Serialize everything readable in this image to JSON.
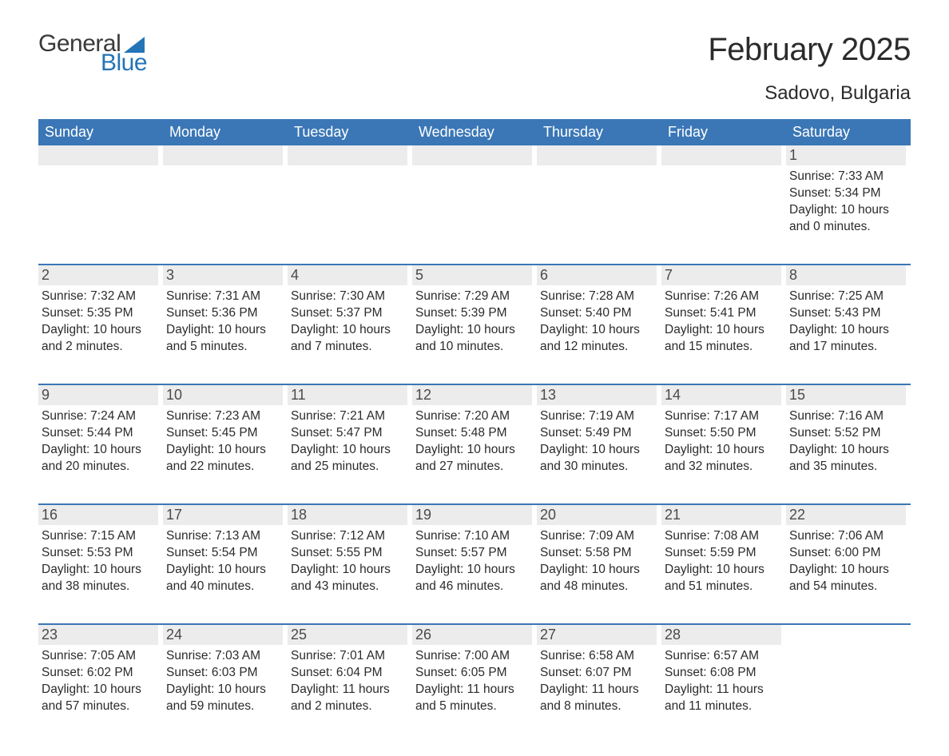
{
  "brand": {
    "word1": "General",
    "word2": "Blue",
    "text_color": "#3a3a3a",
    "accent_color": "#2474b7"
  },
  "title": "February 2025",
  "location": "Sadovo, Bulgaria",
  "colors": {
    "header_bg": "#3b77b6",
    "header_text": "#ffffff",
    "daynum_bg": "#ececec",
    "week_border": "#3b77b6",
    "body_text": "#2b2b2b",
    "page_bg": "#ffffff"
  },
  "typography": {
    "title_fontsize": 40,
    "location_fontsize": 24,
    "dow_fontsize": 18,
    "daynum_fontsize": 18,
    "body_fontsize": 15.5,
    "font_family": "Arial"
  },
  "days_of_week": [
    "Sunday",
    "Monday",
    "Tuesday",
    "Wednesday",
    "Thursday",
    "Friday",
    "Saturday"
  ],
  "layout": {
    "columns": 7,
    "rows": 5,
    "leading_blanks": 6,
    "trailing_blanks": 1
  },
  "label_prefixes": {
    "sunrise": "Sunrise: ",
    "sunset": "Sunset: ",
    "daylight": "Daylight: "
  },
  "days": [
    {
      "n": 1,
      "sunrise": "7:33 AM",
      "sunset": "5:34 PM",
      "daylight": "10 hours and 0 minutes."
    },
    {
      "n": 2,
      "sunrise": "7:32 AM",
      "sunset": "5:35 PM",
      "daylight": "10 hours and 2 minutes."
    },
    {
      "n": 3,
      "sunrise": "7:31 AM",
      "sunset": "5:36 PM",
      "daylight": "10 hours and 5 minutes."
    },
    {
      "n": 4,
      "sunrise": "7:30 AM",
      "sunset": "5:37 PM",
      "daylight": "10 hours and 7 minutes."
    },
    {
      "n": 5,
      "sunrise": "7:29 AM",
      "sunset": "5:39 PM",
      "daylight": "10 hours and 10 minutes."
    },
    {
      "n": 6,
      "sunrise": "7:28 AM",
      "sunset": "5:40 PM",
      "daylight": "10 hours and 12 minutes."
    },
    {
      "n": 7,
      "sunrise": "7:26 AM",
      "sunset": "5:41 PM",
      "daylight": "10 hours and 15 minutes."
    },
    {
      "n": 8,
      "sunrise": "7:25 AM",
      "sunset": "5:43 PM",
      "daylight": "10 hours and 17 minutes."
    },
    {
      "n": 9,
      "sunrise": "7:24 AM",
      "sunset": "5:44 PM",
      "daylight": "10 hours and 20 minutes."
    },
    {
      "n": 10,
      "sunrise": "7:23 AM",
      "sunset": "5:45 PM",
      "daylight": "10 hours and 22 minutes."
    },
    {
      "n": 11,
      "sunrise": "7:21 AM",
      "sunset": "5:47 PM",
      "daylight": "10 hours and 25 minutes."
    },
    {
      "n": 12,
      "sunrise": "7:20 AM",
      "sunset": "5:48 PM",
      "daylight": "10 hours and 27 minutes."
    },
    {
      "n": 13,
      "sunrise": "7:19 AM",
      "sunset": "5:49 PM",
      "daylight": "10 hours and 30 minutes."
    },
    {
      "n": 14,
      "sunrise": "7:17 AM",
      "sunset": "5:50 PM",
      "daylight": "10 hours and 32 minutes."
    },
    {
      "n": 15,
      "sunrise": "7:16 AM",
      "sunset": "5:52 PM",
      "daylight": "10 hours and 35 minutes."
    },
    {
      "n": 16,
      "sunrise": "7:15 AM",
      "sunset": "5:53 PM",
      "daylight": "10 hours and 38 minutes."
    },
    {
      "n": 17,
      "sunrise": "7:13 AM",
      "sunset": "5:54 PM",
      "daylight": "10 hours and 40 minutes."
    },
    {
      "n": 18,
      "sunrise": "7:12 AM",
      "sunset": "5:55 PM",
      "daylight": "10 hours and 43 minutes."
    },
    {
      "n": 19,
      "sunrise": "7:10 AM",
      "sunset": "5:57 PM",
      "daylight": "10 hours and 46 minutes."
    },
    {
      "n": 20,
      "sunrise": "7:09 AM",
      "sunset": "5:58 PM",
      "daylight": "10 hours and 48 minutes."
    },
    {
      "n": 21,
      "sunrise": "7:08 AM",
      "sunset": "5:59 PM",
      "daylight": "10 hours and 51 minutes."
    },
    {
      "n": 22,
      "sunrise": "7:06 AM",
      "sunset": "6:00 PM",
      "daylight": "10 hours and 54 minutes."
    },
    {
      "n": 23,
      "sunrise": "7:05 AM",
      "sunset": "6:02 PM",
      "daylight": "10 hours and 57 minutes."
    },
    {
      "n": 24,
      "sunrise": "7:03 AM",
      "sunset": "6:03 PM",
      "daylight": "10 hours and 59 minutes."
    },
    {
      "n": 25,
      "sunrise": "7:01 AM",
      "sunset": "6:04 PM",
      "daylight": "11 hours and 2 minutes."
    },
    {
      "n": 26,
      "sunrise": "7:00 AM",
      "sunset": "6:05 PM",
      "daylight": "11 hours and 5 minutes."
    },
    {
      "n": 27,
      "sunrise": "6:58 AM",
      "sunset": "6:07 PM",
      "daylight": "11 hours and 8 minutes."
    },
    {
      "n": 28,
      "sunrise": "6:57 AM",
      "sunset": "6:08 PM",
      "daylight": "11 hours and 11 minutes."
    }
  ]
}
